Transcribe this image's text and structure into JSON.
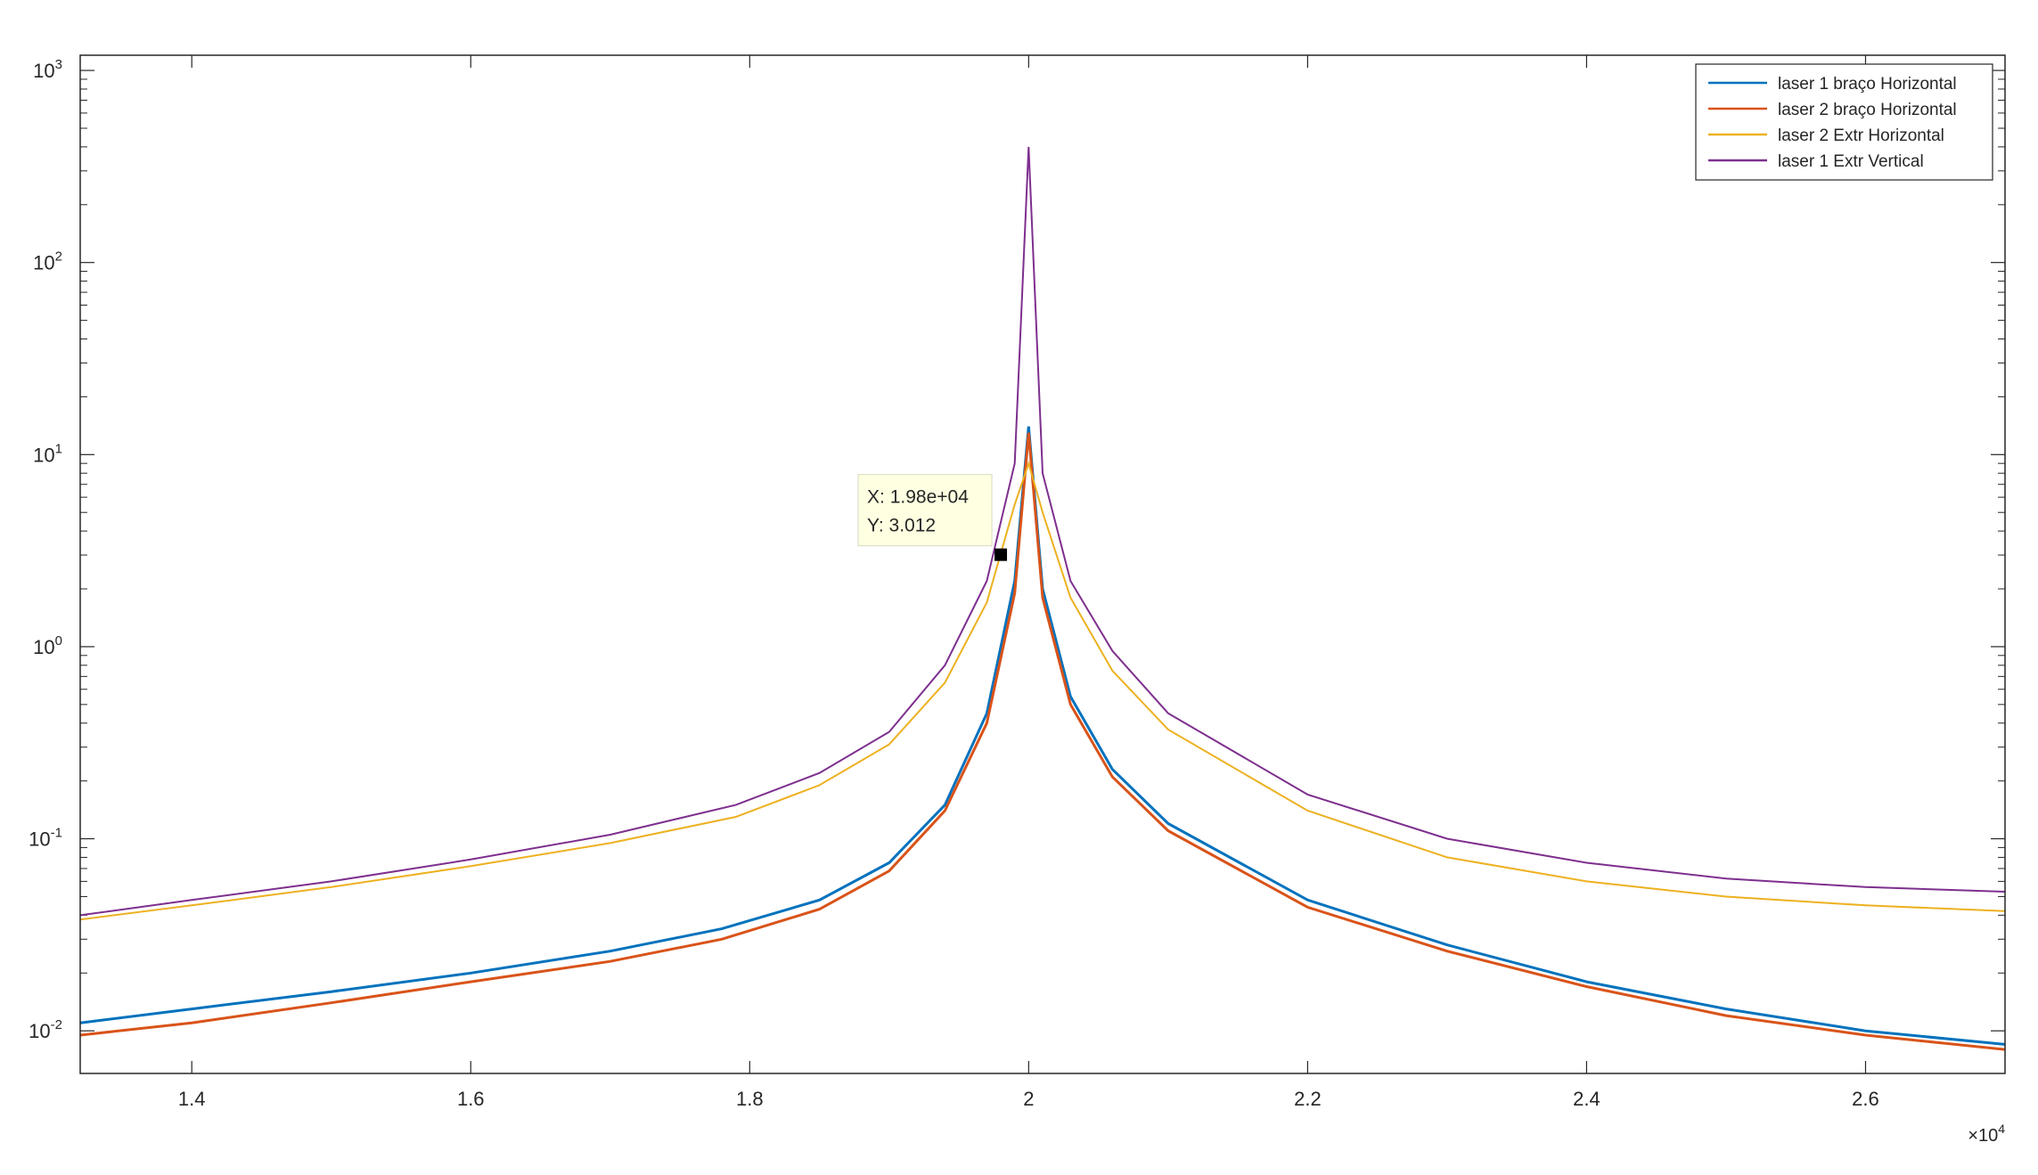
{
  "chart_data": {
    "type": "line",
    "title": "",
    "xlabel": "",
    "ylabel": "",
    "x_scale_exponent": "4",
    "xlim": [
      1.32,
      2.7
    ],
    "ylim": [
      0.006,
      1200
    ],
    "y_scale": "log",
    "x_ticks": [
      "1.4",
      "1.6",
      "1.8",
      "2",
      "2.2",
      "2.4",
      "2.6"
    ],
    "x_tick_values": [
      1.4,
      1.6,
      1.8,
      2.0,
      2.2,
      2.4,
      2.6
    ],
    "y_ticks": [
      {
        "value": 0.01,
        "base": "10",
        "exp": "-2"
      },
      {
        "value": 0.1,
        "base": "10",
        "exp": "-1"
      },
      {
        "value": 1,
        "base": "10",
        "exp": "0"
      },
      {
        "value": 10,
        "base": "10",
        "exp": "1"
      },
      {
        "value": 100,
        "base": "10",
        "exp": "2"
      },
      {
        "value": 1000,
        "base": "10",
        "exp": "3"
      }
    ],
    "legend_position": "top-right",
    "series": [
      {
        "name": "laser 1 braço Horizontal",
        "color": "#0072BD",
        "x": [
          1.32,
          1.4,
          1.5,
          1.6,
          1.7,
          1.78,
          1.85,
          1.9,
          1.94,
          1.97,
          1.99,
          2.0,
          2.01,
          2.03,
          2.06,
          2.1,
          2.2,
          2.3,
          2.4,
          2.5,
          2.6,
          2.7
        ],
        "y": [
          0.011,
          0.013,
          0.016,
          0.02,
          0.026,
          0.034,
          0.048,
          0.075,
          0.15,
          0.45,
          2.2,
          14,
          2.0,
          0.55,
          0.23,
          0.12,
          0.048,
          0.028,
          0.018,
          0.013,
          0.01,
          0.0085
        ]
      },
      {
        "name": "laser 2 braço Horizontal",
        "color": "#D95319",
        "x": [
          1.32,
          1.4,
          1.5,
          1.6,
          1.7,
          1.78,
          1.85,
          1.9,
          1.94,
          1.97,
          1.99,
          2.0,
          2.01,
          2.03,
          2.06,
          2.1,
          2.2,
          2.3,
          2.4,
          2.5,
          2.6,
          2.7
        ],
        "y": [
          0.0095,
          0.011,
          0.014,
          0.018,
          0.023,
          0.03,
          0.043,
          0.068,
          0.14,
          0.4,
          1.9,
          13,
          1.8,
          0.5,
          0.21,
          0.11,
          0.044,
          0.026,
          0.017,
          0.012,
          0.0095,
          0.008
        ]
      },
      {
        "name": "laser 2 Extr Horizontal",
        "color": "#EDB120",
        "x": [
          1.32,
          1.4,
          1.5,
          1.6,
          1.7,
          1.79,
          1.85,
          1.9,
          1.94,
          1.97,
          1.99,
          2.0,
          2.01,
          2.03,
          2.06,
          2.1,
          2.2,
          2.3,
          2.4,
          2.5,
          2.6,
          2.7
        ],
        "y": [
          0.038,
          0.045,
          0.056,
          0.072,
          0.095,
          0.13,
          0.19,
          0.31,
          0.65,
          1.7,
          5.5,
          9.0,
          5.0,
          1.8,
          0.75,
          0.37,
          0.14,
          0.08,
          0.06,
          0.05,
          0.045,
          0.042
        ]
      },
      {
        "name": "laser 1 Extr Vertical",
        "color": "#7E2F8E",
        "x": [
          1.32,
          1.4,
          1.5,
          1.6,
          1.7,
          1.79,
          1.85,
          1.9,
          1.94,
          1.97,
          1.99,
          2.0,
          2.01,
          2.03,
          2.06,
          2.1,
          2.2,
          2.3,
          2.4,
          2.5,
          2.6,
          2.7
        ],
        "y": [
          0.04,
          0.048,
          0.06,
          0.078,
          0.105,
          0.15,
          0.22,
          0.36,
          0.8,
          2.2,
          9.0,
          400,
          8.0,
          2.2,
          0.95,
          0.45,
          0.17,
          0.1,
          0.075,
          0.062,
          0.056,
          0.053
        ]
      }
    ],
    "datatip": {
      "x": 1.98,
      "y": 3.012,
      "label_x": "X: 1.98e+04",
      "label_y": "Y: 3.012"
    }
  }
}
